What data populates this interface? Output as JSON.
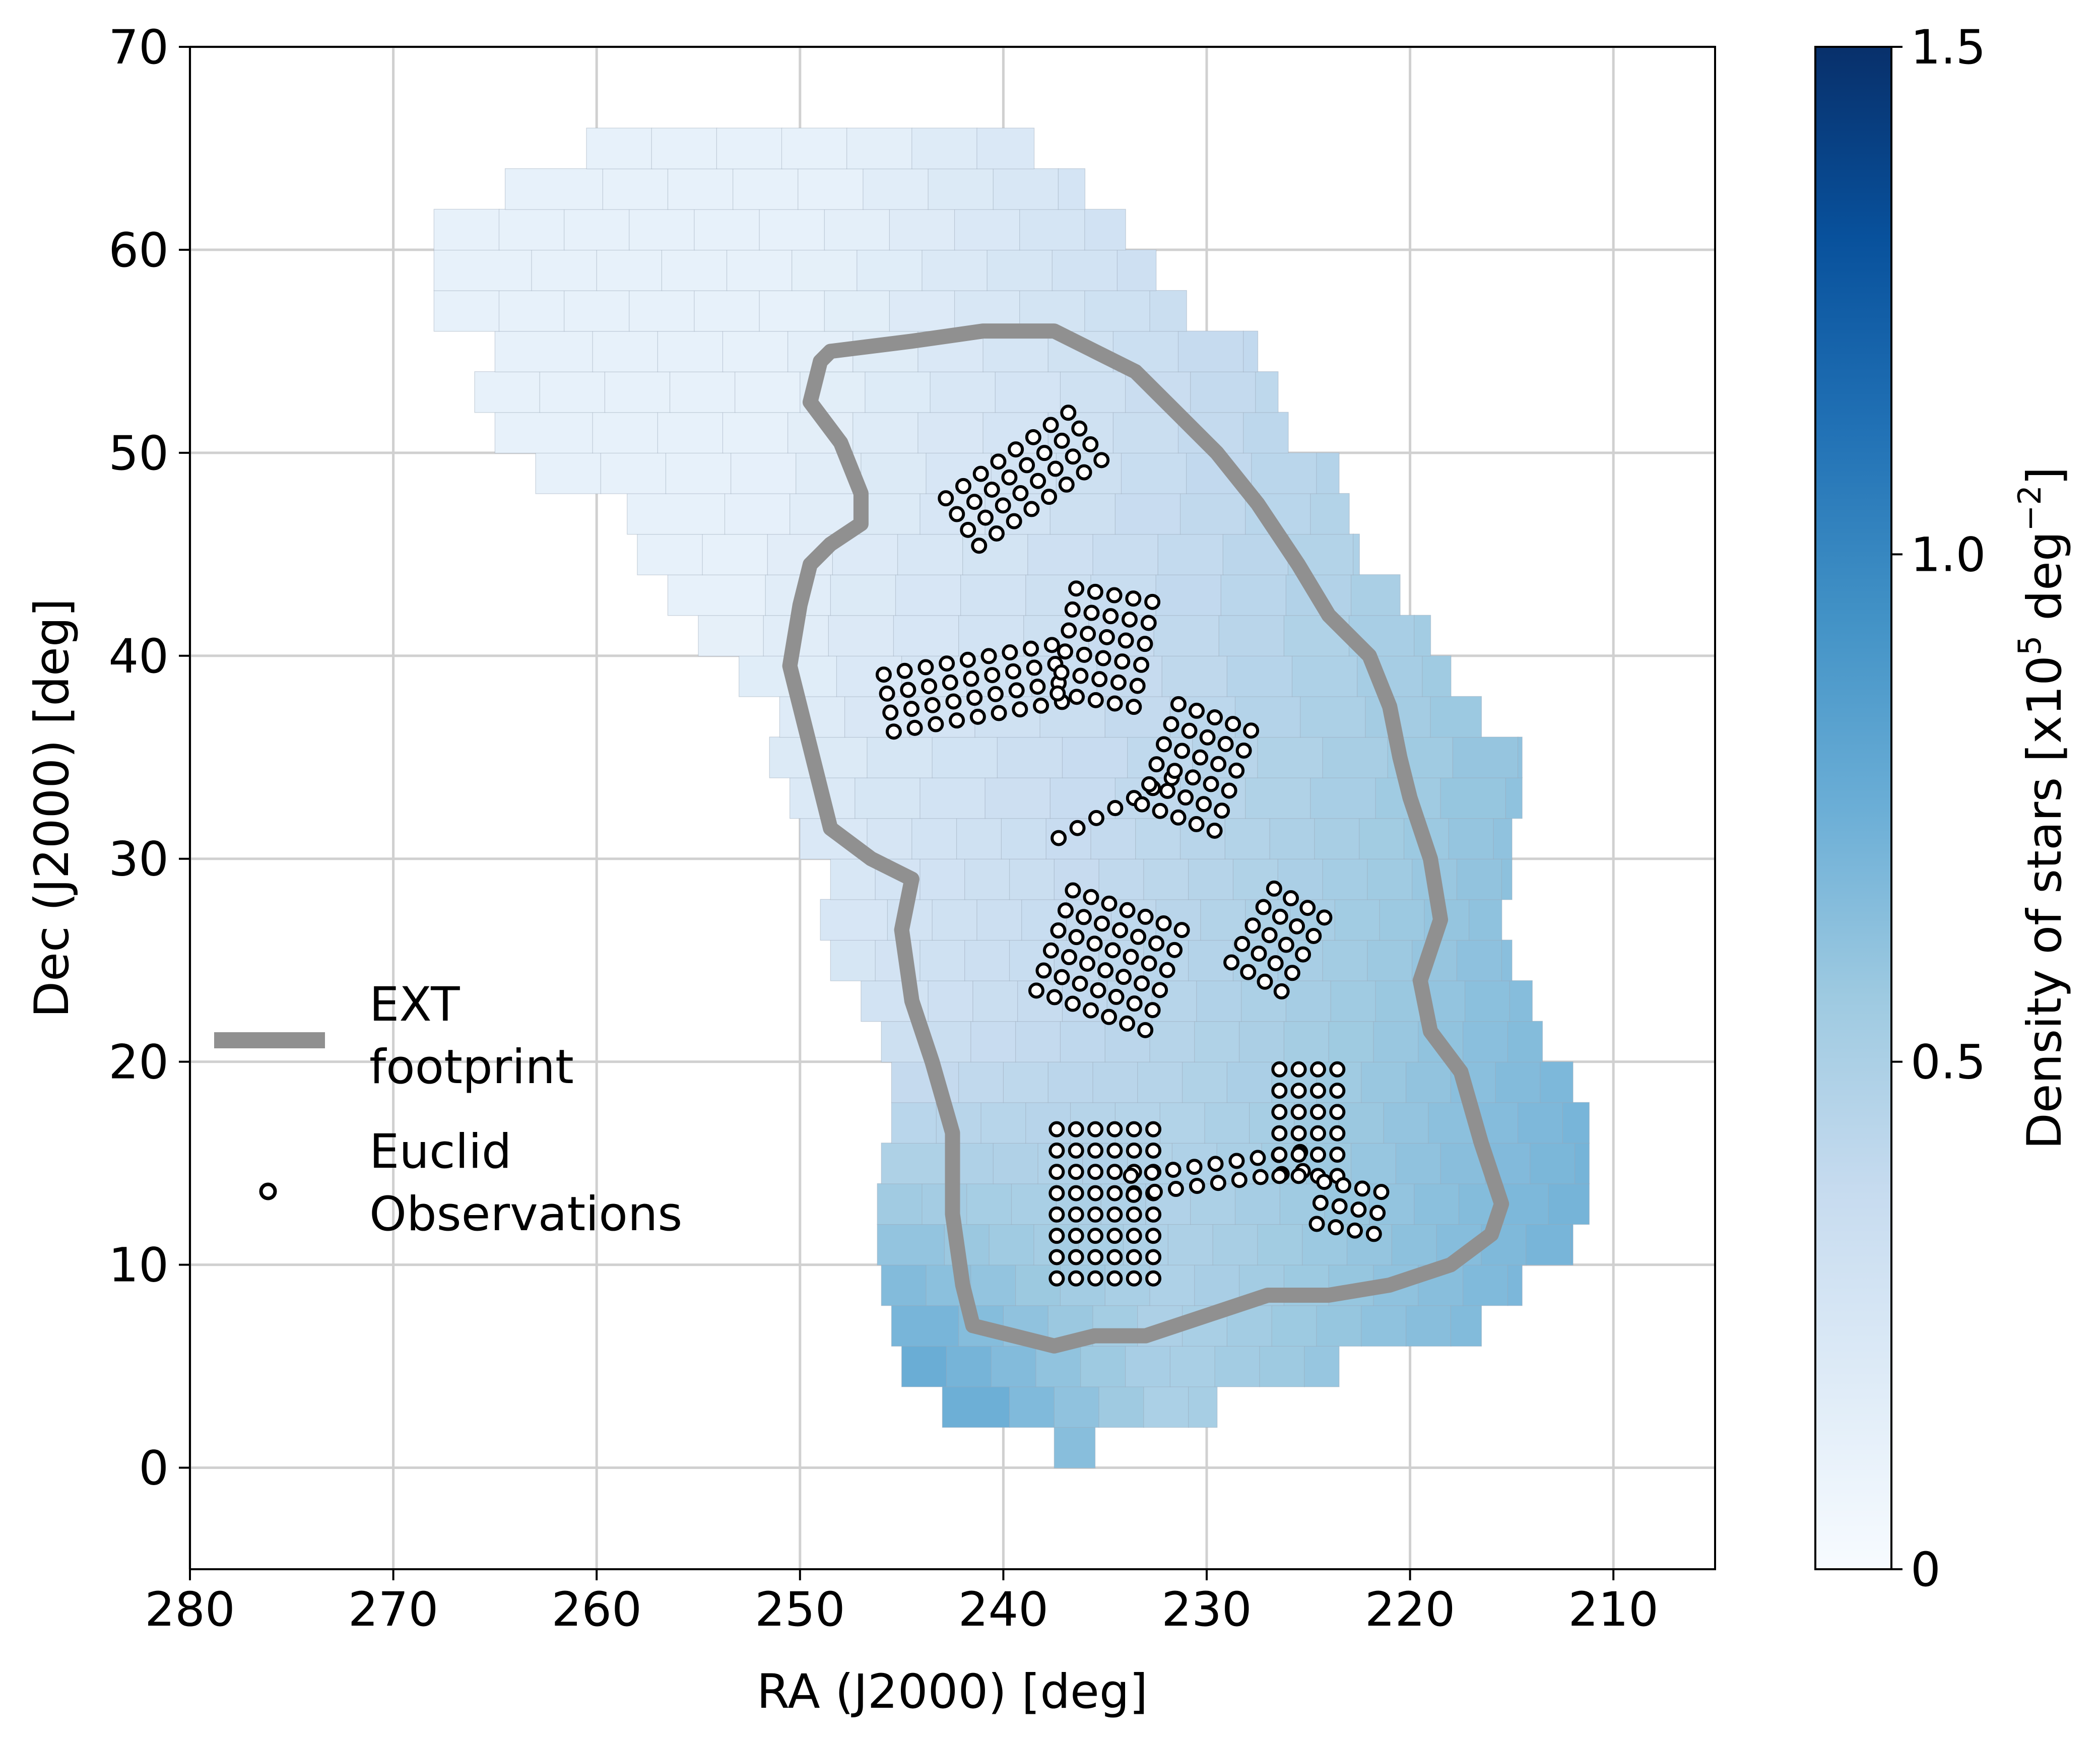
{
  "chart_data": {
    "type": "heatmap",
    "title": "",
    "xlabel": "RA (J2000) [deg]",
    "ylabel": "Dec (J2000) [deg]",
    "x_axis_inverted": true,
    "xlim": [
      280,
      205
    ],
    "ylim": [
      -5,
      70
    ],
    "xticks": [
      280,
      270,
      260,
      250,
      240,
      230,
      220,
      210
    ],
    "yticks": [
      0,
      10,
      20,
      30,
      40,
      50,
      60,
      70
    ],
    "grid": true,
    "colorbar": {
      "label": "Density of stars [x10",
      "label_sup1": "5",
      "label_mid": " deg",
      "label_sup2": "−2",
      "label_end": "]",
      "range": [
        0,
        1.5
      ],
      "ticks": [
        0,
        0.5,
        1.0,
        1.5
      ],
      "tick_labels": [
        "0",
        "0.5",
        "1.0",
        "1.5"
      ],
      "colormap": "Blues",
      "colors": [
        "#f7fbff",
        "#deebf7",
        "#c6dbef",
        "#9ecae1",
        "#6baed6",
        "#4292c6",
        "#2171b5",
        "#08519c",
        "#08306b"
      ]
    },
    "legend": {
      "placement": "center-left",
      "entries": [
        {
          "line1": "EXT",
          "line2": "footprint",
          "marker": "line",
          "color": "#909090"
        },
        {
          "line1": "Euclid",
          "line2": "Observations",
          "marker": "circle"
        }
      ]
    },
    "density_region": {
      "rows": [
        [
          0,
          2,
          237.5,
          235.5
        ],
        [
          2,
          4,
          243.0,
          229.5
        ],
        [
          4,
          6,
          245.0,
          223.5
        ],
        [
          6,
          8,
          245.5,
          216.5
        ],
        [
          8,
          10,
          246.0,
          214.5
        ],
        [
          10,
          12,
          246.2,
          212.0
        ],
        [
          12,
          14,
          246.2,
          211.2
        ],
        [
          14,
          16,
          246.0,
          211.2
        ],
        [
          16,
          18,
          245.5,
          211.2
        ],
        [
          18,
          20,
          245.5,
          212.0
        ],
        [
          20,
          22,
          246.0,
          213.5
        ],
        [
          22,
          24,
          247.0,
          214.0
        ],
        [
          24,
          26,
          248.5,
          215.0
        ],
        [
          26,
          28,
          249.0,
          215.5
        ],
        [
          28,
          30,
          248.5,
          215.0
        ],
        [
          30,
          32,
          250.0,
          215.0
        ],
        [
          32,
          34,
          250.5,
          214.5
        ],
        [
          34,
          36,
          251.5,
          214.5
        ],
        [
          36,
          38,
          251.0,
          216.5
        ],
        [
          38,
          40,
          253.0,
          218.0
        ],
        [
          40,
          42,
          255.0,
          219.0
        ],
        [
          42,
          44,
          256.5,
          220.5
        ],
        [
          44,
          46,
          258.0,
          222.5
        ],
        [
          46,
          48,
          258.5,
          223.0
        ],
        [
          48,
          50,
          263.0,
          223.5
        ],
        [
          50,
          52,
          265.0,
          226.0
        ],
        [
          52,
          54,
          266.0,
          226.5
        ],
        [
          54,
          56,
          265.0,
          227.5
        ],
        [
          56,
          58,
          268.0,
          231.0
        ],
        [
          58,
          60,
          268.0,
          232.5
        ],
        [
          60,
          62,
          268.0,
          234.0
        ],
        [
          62,
          64,
          264.5,
          236.0
        ],
        [
          64,
          66,
          260.5,
          238.5
        ]
      ]
    },
    "footprint": [
      [
        248.5,
        55.0
      ],
      [
        244.5,
        55.5
      ],
      [
        241.0,
        56.0
      ],
      [
        237.5,
        56.0
      ],
      [
        235.5,
        55.0
      ],
      [
        233.5,
        54.0
      ],
      [
        231.5,
        52.0
      ],
      [
        229.5,
        50.0
      ],
      [
        227.5,
        47.5
      ],
      [
        225.5,
        44.5
      ],
      [
        224.0,
        42.0
      ],
      [
        222.0,
        40.0
      ],
      [
        221.0,
        37.5
      ],
      [
        220.5,
        35.0
      ],
      [
        220.0,
        33.0
      ],
      [
        219.0,
        30.0
      ],
      [
        218.5,
        27.0
      ],
      [
        219.5,
        24.0
      ],
      [
        219.0,
        21.5
      ],
      [
        217.5,
        19.5
      ],
      [
        216.5,
        16.0
      ],
      [
        215.5,
        13.0
      ],
      [
        216.0,
        11.5
      ],
      [
        218.0,
        10.0
      ],
      [
        221.0,
        9.0
      ],
      [
        224.0,
        8.5
      ],
      [
        227.0,
        8.5
      ],
      [
        230.0,
        7.5
      ],
      [
        233.0,
        6.5
      ],
      [
        235.5,
        6.5
      ],
      [
        237.5,
        6.0
      ],
      [
        239.5,
        6.5
      ],
      [
        241.5,
        7.0
      ],
      [
        242.0,
        9.0
      ],
      [
        242.5,
        12.5
      ],
      [
        242.5,
        16.5
      ],
      [
        243.5,
        20.0
      ],
      [
        244.5,
        23.0
      ],
      [
        245.0,
        26.5
      ],
      [
        244.5,
        29.0
      ],
      [
        246.5,
        30.0
      ],
      [
        248.5,
        31.5
      ],
      [
        249.5,
        35.5
      ],
      [
        250.5,
        39.5
      ],
      [
        250.0,
        42.5
      ],
      [
        249.5,
        44.5
      ],
      [
        248.5,
        45.5
      ],
      [
        247.0,
        46.5
      ],
      [
        247.0,
        48.0
      ],
      [
        248.0,
        50.5
      ],
      [
        249.5,
        52.5
      ],
      [
        249.0,
        54.5
      ],
      [
        248.5,
        55.0
      ]
    ],
    "observation_groups": [
      {
        "center": [
          239.0,
          48.7
        ],
        "cols": 4,
        "rows": 8,
        "d_along": 0.95,
        "d_across": 1.05,
        "angle_deg": -55,
        "dropped": []
      },
      {
        "center": [
          241.5,
          38.4
        ],
        "cols": 4,
        "rows": 9,
        "d_along": 0.95,
        "d_across": 1.05,
        "angle_deg": -80,
        "dropped": []
      },
      {
        "center": [
          235.0,
          40.4
        ],
        "cols": 5,
        "rows": 6,
        "d_along": 0.95,
        "d_across": 1.05,
        "angle_deg": -10,
        "dropped": []
      },
      {
        "center": [
          234.5,
          32.5
        ],
        "cols": 1,
        "rows": 7,
        "d_along": 0.95,
        "d_across": 1.05,
        "angle_deg": -62,
        "dropped": []
      },
      {
        "center": [
          230.5,
          34.5
        ],
        "cols": 5,
        "rows": 6,
        "d_along": 0.95,
        "d_across": 1.05,
        "angle_deg": -20,
        "dropped": []
      },
      {
        "center": [
          234.8,
          25.0
        ],
        "cols": 7,
        "rows": 6,
        "d_along": 0.95,
        "d_across": 1.05,
        "angle_deg": -20,
        "dropped": []
      },
      {
        "center": [
          226.5,
          26.0
        ],
        "cols": 4,
        "rows": 5,
        "d_along": 0.95,
        "d_across": 1.05,
        "angle_deg": -30,
        "dropped": []
      },
      {
        "center": [
          235.0,
          13.0
        ],
        "cols": 6,
        "rows": 8,
        "d_along": 0.95,
        "d_across": 1.05,
        "angle_deg": 0,
        "dropped": []
      },
      {
        "center": [
          229.5,
          14.5
        ],
        "cols": 2,
        "rows": 9,
        "d_along": 0.95,
        "d_across": 1.05,
        "angle_deg": -82,
        "dropped": []
      },
      {
        "center": [
          225.0,
          17.0
        ],
        "cols": 4,
        "rows": 6,
        "d_along": 0.95,
        "d_across": 1.05,
        "angle_deg": 0,
        "dropped": []
      },
      {
        "center": [
          223.0,
          12.8
        ],
        "cols": 4,
        "rows": 3,
        "d_along": 0.95,
        "d_across": 1.05,
        "angle_deg": -10,
        "dropped": []
      }
    ]
  }
}
